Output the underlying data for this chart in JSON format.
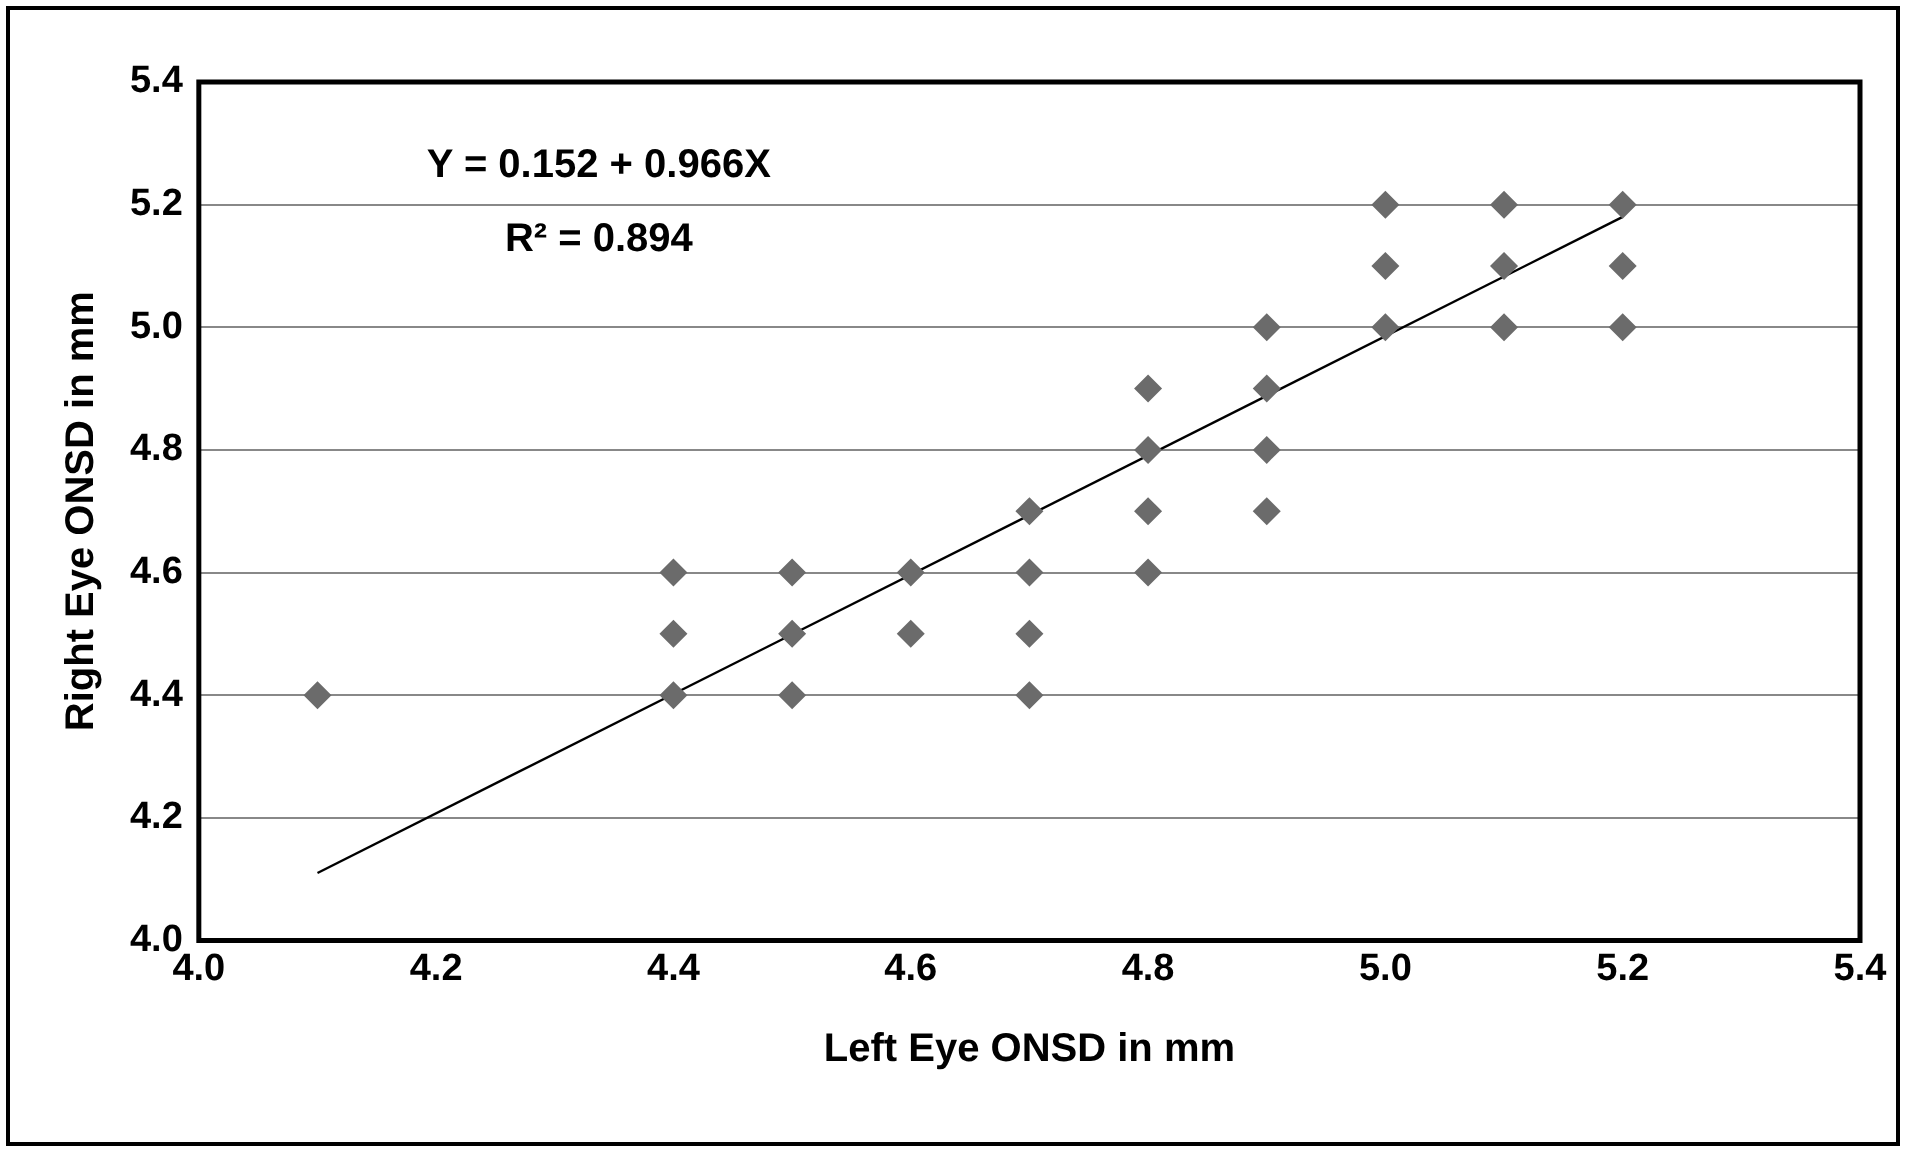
{
  "chart_data": {
    "type": "scatter",
    "xlabel": "Left Eye ONSD in mm",
    "ylabel": "Right Eye ONSD in mm",
    "annotations": [
      "Y = 0.152 + 0.966X",
      "R² = 0.894"
    ],
    "xlim": [
      4.0,
      5.4
    ],
    "xticks": [
      {
        "value": 4.0,
        "label": "4.0"
      },
      {
        "value": 4.2,
        "label": "4.2"
      },
      {
        "value": 4.4,
        "label": "4.4"
      },
      {
        "value": 4.6,
        "label": "4.6"
      },
      {
        "value": 4.8,
        "label": "4.8"
      },
      {
        "value": 5.0,
        "label": "5.0"
      },
      {
        "value": 5.2,
        "label": "5.2"
      },
      {
        "value": 5.4,
        "label": "5.4"
      }
    ],
    "ylim": [
      4.0,
      5.4
    ],
    "yticks": [
      {
        "value": 4.0,
        "label": "4.0"
      },
      {
        "value": 4.2,
        "label": "4.2"
      },
      {
        "value": 4.4,
        "label": "4.4"
      },
      {
        "value": 4.6,
        "label": "4.6"
      },
      {
        "value": 4.8,
        "label": "4.8"
      },
      {
        "value": 5.0,
        "label": "5.0"
      },
      {
        "value": 5.2,
        "label": "5.2"
      },
      {
        "value": 5.4,
        "label": "5.4"
      }
    ],
    "grid": "y",
    "marker": "diamond",
    "legend": false,
    "series": [
      {
        "color": "#6b6b6b",
        "x": [
          4.1,
          4.4,
          4.4,
          4.4,
          4.5,
          4.5,
          4.5,
          4.6,
          4.6,
          4.7,
          4.7,
          4.7,
          4.7,
          4.8,
          4.8,
          4.8,
          4.8,
          4.9,
          4.9,
          4.9,
          4.9,
          5.0,
          5.0,
          5.0,
          5.1,
          5.1,
          5.1,
          5.2,
          5.2,
          5.2
        ],
        "values": [
          4.4,
          4.6,
          4.5,
          4.4,
          4.6,
          4.5,
          4.4,
          4.6,
          4.5,
          4.7,
          4.6,
          4.5,
          4.4,
          4.9,
          4.8,
          4.7,
          4.6,
          5.0,
          4.9,
          4.8,
          4.7,
          5.2,
          5.1,
          5.0,
          5.2,
          5.1,
          5.0,
          5.2,
          5.1,
          5.0
        ]
      },
      {
        "type": "line",
        "color": "#000000",
        "marker": "none",
        "x": [
          4.1,
          5.2
        ],
        "values": [
          4.11,
          5.18
        ]
      }
    ]
  }
}
